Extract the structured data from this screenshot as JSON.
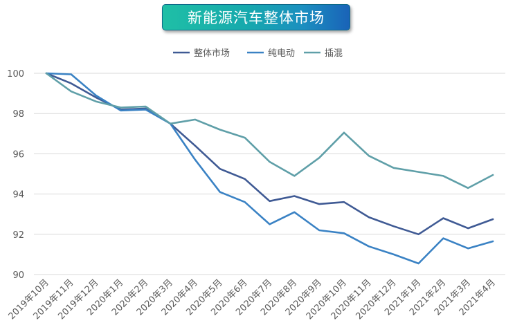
{
  "chart_data": {
    "type": "line",
    "title": "新能源汽车整体市场",
    "categories": [
      "2019年10月",
      "2019年11月",
      "2019年12月",
      "2020年1月",
      "2020年2月",
      "2020年3月",
      "2020年4月",
      "2020年5月",
      "2020年6月",
      "2020年7月",
      "2020年8月",
      "2020年9月",
      "2020年10月",
      "2020年11月",
      "2020年12月",
      "2021年1月",
      "2021年2月",
      "2021年3月",
      "2021年4月"
    ],
    "ylim": [
      90,
      100
    ],
    "yticks": [
      "90",
      "92",
      "94",
      "96",
      "98",
      "100"
    ],
    "grid": true,
    "legend_position": "top",
    "series": [
      {
        "name": "整体市场",
        "color": "#3f5a94",
        "values": [
          100,
          99.5,
          98.8,
          98.2,
          98.25,
          97.5,
          96.4,
          95.25,
          94.75,
          93.65,
          93.9,
          93.5,
          93.6,
          92.85,
          92.4,
          92.0,
          92.8,
          92.3,
          92.75
        ]
      },
      {
        "name": "纯电动",
        "color": "#3a82c4",
        "values": [
          100,
          99.95,
          98.9,
          98.15,
          98.2,
          97.5,
          95.7,
          94.1,
          93.6,
          92.5,
          93.1,
          92.2,
          92.05,
          91.4,
          91.0,
          90.55,
          91.8,
          91.3,
          91.65
        ]
      },
      {
        "name": "插混",
        "color": "#5f9fa8",
        "values": [
          100,
          99.1,
          98.6,
          98.3,
          98.35,
          97.5,
          97.7,
          97.2,
          96.8,
          95.6,
          94.9,
          95.8,
          97.05,
          95.9,
          95.3,
          95.1,
          94.9,
          94.3,
          94.95
        ]
      }
    ]
  }
}
